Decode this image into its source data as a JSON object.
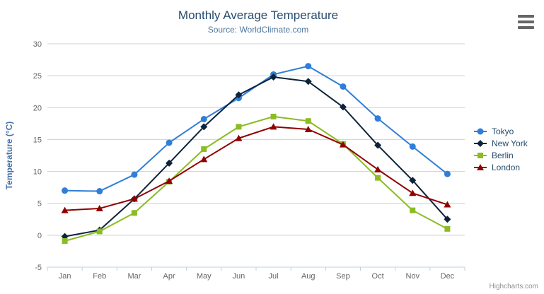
{
  "header": {
    "title": "Monthly Average Temperature",
    "subtitle": "Source: WorldClimate.com"
  },
  "credits": "Highcharts.com",
  "chart_data": {
    "type": "line",
    "title": "Monthly Average Temperature",
    "subtitle": "Source: WorldClimate.com",
    "xlabel": "",
    "ylabel": "Temperature (°C)",
    "categories": [
      "Jan",
      "Feb",
      "Mar",
      "Apr",
      "May",
      "Jun",
      "Jul",
      "Aug",
      "Sep",
      "Oct",
      "Nov",
      "Dec"
    ],
    "ylim": [
      -5,
      30
    ],
    "ytick_interval": 5,
    "grid": true,
    "legend_position": "right",
    "series": [
      {
        "name": "Tokyo",
        "color": "#2f7ed8",
        "marker": "circle",
        "values": [
          7.0,
          6.9,
          9.5,
          14.5,
          18.2,
          21.5,
          25.2,
          26.5,
          23.3,
          18.3,
          13.9,
          9.6
        ]
      },
      {
        "name": "New York",
        "color": "#0d233a",
        "marker": "diamond",
        "values": [
          -0.2,
          0.8,
          5.7,
          11.3,
          17.0,
          22.0,
          24.8,
          24.1,
          20.1,
          14.1,
          8.6,
          2.5
        ]
      },
      {
        "name": "Berlin",
        "color": "#8bbc21",
        "marker": "square",
        "values": [
          -0.9,
          0.6,
          3.5,
          8.4,
          13.5,
          17.0,
          18.6,
          17.9,
          14.3,
          9.0,
          3.9,
          1.0
        ]
      },
      {
        "name": "London",
        "color": "#910000",
        "marker": "triangle",
        "values": [
          3.9,
          4.2,
          5.7,
          8.5,
          11.9,
          15.2,
          17.0,
          16.6,
          14.2,
          10.3,
          6.6,
          4.8
        ]
      }
    ],
    "colors": {
      "grid": "#d0d0d0",
      "axis_line": "#c0d0e0",
      "tick_text": "#666666",
      "axis_title": "#4572a7",
      "title": "#274b6d",
      "subtitle": "#4d759e",
      "legend_text": "#274b6d",
      "credits": "#909090",
      "menu_icon": "#666666"
    }
  }
}
